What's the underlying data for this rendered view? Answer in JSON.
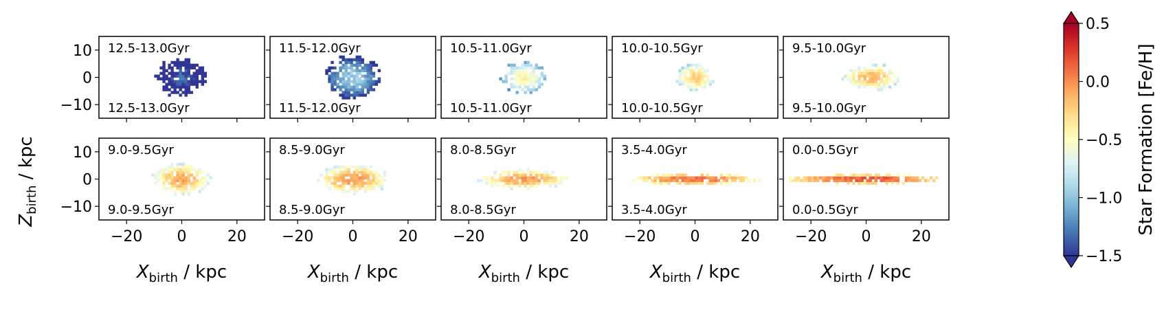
{
  "chart_data": {
    "type": "heatmap",
    "xlabel_main": "X",
    "xlabel_sub": "birth",
    "xlabel_unit": " / kpc",
    "ylabel_main": "Z",
    "ylabel_sub": "birth",
    "ylabel_unit": " / kpc",
    "xlim": [
      -30,
      30
    ],
    "ylim": [
      -15,
      15
    ],
    "xticks": [
      -20,
      0,
      20
    ],
    "yticks": [
      10,
      0,
      -10
    ],
    "tick_labels_x": [
      "−20",
      "0",
      "20"
    ],
    "tick_labels_y": [
      "10",
      "0",
      "−10"
    ],
    "colorbar": {
      "label": "Star Formation [Fe/H]",
      "range": [
        -1.5,
        0.5
      ],
      "ticks": [
        0.5,
        0.0,
        -0.5,
        -1.0,
        -1.5
      ],
      "tick_labels": [
        "0.5",
        "0.0",
        "−0.5",
        "−1.0",
        "−1.5"
      ],
      "colormap": "RdYlBu_r",
      "extend": "both"
    },
    "panels": [
      {
        "label": "12.5-13.0Gyr",
        "cx": 0,
        "cz": 0,
        "rx": 8,
        "rz": 6,
        "feh": -1.35
      },
      {
        "label": "11.5-12.0Gyr",
        "cx": 0,
        "cz": 0,
        "rx": 9,
        "rz": 7,
        "feh": -0.95
      },
      {
        "label": "10.5-11.0Gyr",
        "cx": 0,
        "cz": 0,
        "rx": 7,
        "rz": 5,
        "feh": -0.45
      },
      {
        "label": "10.0-10.5Gyr",
        "cx": 0,
        "cz": 0,
        "rx": 6,
        "rz": 4.5,
        "feh": -0.25
      },
      {
        "label": "9.5-10.0Gyr",
        "cx": 2,
        "cz": 0,
        "rx": 9,
        "rz": 4,
        "feh": -0.15
      },
      {
        "label": "9.0-9.5Gyr",
        "cx": 0,
        "cz": 0,
        "rx": 9,
        "rz": 5,
        "feh": -0.1
      },
      {
        "label": "8.5-9.0Gyr",
        "cx": 0,
        "cz": 0,
        "rx": 11,
        "rz": 4.5,
        "feh": -0.05
      },
      {
        "label": "8.0-8.5Gyr",
        "cx": 0,
        "cz": 0,
        "rx": 14,
        "rz": 3,
        "feh": -0.05
      },
      {
        "label": "3.5-4.0Gyr",
        "cx": 0,
        "cz": 0,
        "rx": 20,
        "rz": 1.8,
        "feh": 0.1
      },
      {
        "label": "0.0-0.5Gyr",
        "cx": 0,
        "cz": 0,
        "rx": 26,
        "rz": 1.5,
        "feh": 0.2
      }
    ]
  }
}
